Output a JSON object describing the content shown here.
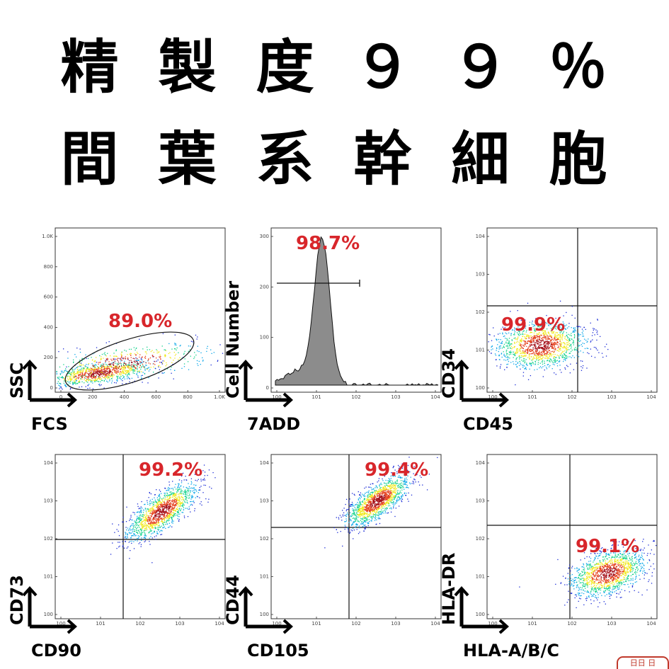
{
  "title": {
    "line1": [
      "精",
      "製",
      "度",
      "９",
      "９",
      "％"
    ],
    "line2": [
      "間",
      "葉",
      "系",
      "幹",
      "細",
      "胞"
    ]
  },
  "colors": {
    "percent": "#d8262b",
    "histogram_fill": "#8c8c8c",
    "density": [
      "#1a2bd6",
      "#0aa6e8",
      "#12d28a",
      "#f0e818",
      "#e5401c",
      "#a4101a"
    ]
  },
  "panels": [
    {
      "id": "fcs-ssc",
      "type": "scatter-gate",
      "x_label": "FCS",
      "y_label": "SSC",
      "percent": "89.0%",
      "x_ticks": [
        "0",
        "200",
        "400",
        "600",
        "800",
        "1.0K"
      ],
      "y_ticks": [
        "0",
        "200",
        "400",
        "600",
        "800",
        "1.0K"
      ]
    },
    {
      "id": "7add",
      "type": "histogram",
      "x_label": "7ADD",
      "y_label": "Cell Number",
      "percent": "98.7%",
      "x_ticks": [
        "10^0",
        "10^1",
        "10^2",
        "10^3",
        "10^4"
      ],
      "y_ticks": [
        "0",
        "100",
        "200",
        "300"
      ]
    },
    {
      "id": "cd45-cd34",
      "type": "quadrant",
      "x_label": "CD45",
      "y_label": "CD34",
      "percent": "99.9%",
      "x_ticks": [
        "10^0",
        "10^1",
        "10^2",
        "10^3",
        "10^4"
      ],
      "y_ticks": [
        "10^0",
        "10^1",
        "10^2",
        "10^3",
        "10^4"
      ]
    },
    {
      "id": "cd90-cd73",
      "type": "quadrant",
      "x_label": "CD90",
      "y_label": "CD73",
      "percent": "99.2%",
      "x_ticks": [
        "10^0",
        "10^1",
        "10^2",
        "10^3",
        "10^4"
      ],
      "y_ticks": [
        "10^0",
        "10^1",
        "10^2",
        "10^3",
        "10^4"
      ]
    },
    {
      "id": "cd105-cd44",
      "type": "quadrant",
      "x_label": "CD105",
      "y_label": "CD44",
      "percent": "99.4%",
      "x_ticks": [
        "10^0",
        "10^1",
        "10^2",
        "10^3",
        "10^4"
      ],
      "y_ticks": [
        "10^0",
        "10^1",
        "10^2",
        "10^3",
        "10^4"
      ]
    },
    {
      "id": "hla",
      "type": "quadrant",
      "x_label": "HLA-A/B/C",
      "y_label": "HLA-DR",
      "percent": "99.1%",
      "x_ticks": [
        "10^0",
        "10^1",
        "10^2",
        "10^3",
        "10^4"
      ],
      "y_ticks": [
        "10^0",
        "10^1",
        "10^2",
        "10^3",
        "10^4"
      ]
    }
  ],
  "stamp": "日日 日"
}
